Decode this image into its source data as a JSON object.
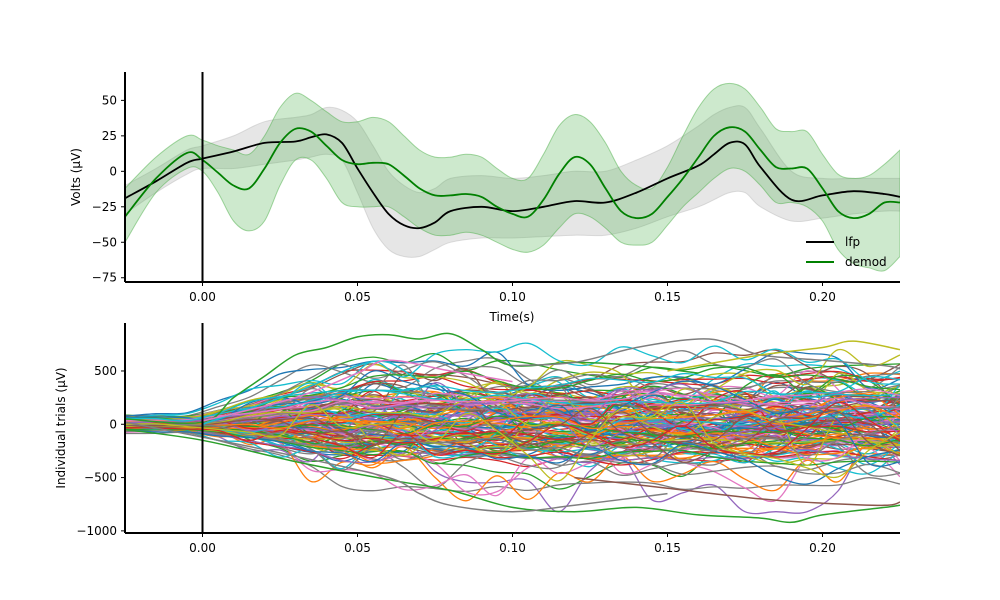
{
  "chart_data": [
    {
      "type": "line",
      "xlabel": "Time(s)",
      "ylabel": "Volts (μV)",
      "xlim": [
        -0.025,
        0.225
      ],
      "ylim": [
        -78,
        70
      ],
      "xticks": [
        0.0,
        0.05,
        0.1,
        0.15,
        0.2
      ],
      "xtick_labels": [
        "0.00",
        "0.05",
        "0.10",
        "0.15",
        "0.20"
      ],
      "yticks": [
        -75,
        -50,
        -25,
        0,
        25,
        50
      ],
      "ytick_labels": [
        "−75",
        "−50",
        "−25",
        "0",
        "25",
        "50"
      ],
      "vline_x": 0.0,
      "legend": {
        "placement": "bottom-right"
      },
      "grid": false,
      "series": [
        {
          "name": "lfp",
          "color": "#000000",
          "x": [
            -0.025,
            -0.015,
            -0.005,
            0.0,
            0.01,
            0.02,
            0.03,
            0.035,
            0.04,
            0.045,
            0.05,
            0.055,
            0.06,
            0.065,
            0.07,
            0.075,
            0.08,
            0.09,
            0.1,
            0.11,
            0.12,
            0.13,
            0.14,
            0.15,
            0.16,
            0.165,
            0.17,
            0.175,
            0.18,
            0.19,
            0.2,
            0.21,
            0.22,
            0.225
          ],
          "values": [
            -19,
            -7,
            6,
            9,
            14,
            20,
            21,
            24,
            26,
            20,
            2,
            -15,
            -30,
            -38,
            -40,
            -36,
            -28,
            -25,
            -28,
            -25,
            -21,
            -22,
            -15,
            -5,
            4,
            12,
            20,
            19,
            3,
            -20,
            -17,
            -14,
            -16,
            -18
          ],
          "band_lower": [
            -30,
            -15,
            -2,
            2,
            2,
            5,
            8,
            10,
            12,
            8,
            -15,
            -40,
            -55,
            -60,
            -60,
            -55,
            -50,
            -47,
            -47,
            -46,
            -45,
            -45,
            -40,
            -32,
            -25,
            -20,
            -15,
            -15,
            -25,
            -35,
            -33,
            -30,
            -28,
            -28
          ],
          "band_upper": [
            -10,
            2,
            15,
            18,
            25,
            35,
            38,
            40,
            45,
            43,
            35,
            18,
            0,
            -10,
            -15,
            -12,
            -5,
            -3,
            -5,
            -3,
            0,
            0,
            8,
            18,
            32,
            40,
            45,
            45,
            30,
            0,
            -5,
            -5,
            -5,
            -5
          ]
        },
        {
          "name": "demod",
          "color": "#008000",
          "x": [
            -0.025,
            -0.015,
            -0.005,
            0.0,
            0.005,
            0.01,
            0.015,
            0.02,
            0.025,
            0.03,
            0.035,
            0.04,
            0.045,
            0.05,
            0.055,
            0.06,
            0.065,
            0.07,
            0.075,
            0.08,
            0.085,
            0.09,
            0.095,
            0.1,
            0.105,
            0.11,
            0.115,
            0.12,
            0.125,
            0.13,
            0.135,
            0.14,
            0.145,
            0.15,
            0.155,
            0.16,
            0.165,
            0.17,
            0.175,
            0.18,
            0.185,
            0.19,
            0.195,
            0.2,
            0.205,
            0.21,
            0.215,
            0.22,
            0.225
          ],
          "values": [
            -32,
            -5,
            13,
            8,
            -1,
            -10,
            -12,
            2,
            20,
            30,
            28,
            18,
            8,
            5,
            6,
            5,
            -3,
            -12,
            -17,
            -17,
            -16,
            -18,
            -25,
            -30,
            -32,
            -20,
            -2,
            10,
            5,
            -12,
            -28,
            -33,
            -30,
            -18,
            -5,
            10,
            25,
            31,
            28,
            15,
            3,
            2,
            2,
            -12,
            -28,
            -33,
            -30,
            -22,
            -22
          ],
          "band_lower": [
            -50,
            -15,
            2,
            0,
            -15,
            -35,
            -42,
            -35,
            -10,
            8,
            8,
            -5,
            -22,
            -25,
            -25,
            -25,
            -32,
            -40,
            -45,
            -45,
            -43,
            -45,
            -50,
            -55,
            -57,
            -52,
            -40,
            -30,
            -32,
            -40,
            -50,
            -52,
            -50,
            -38,
            -25,
            -15,
            -5,
            2,
            0,
            -10,
            -22,
            -22,
            -25,
            -35,
            -55,
            -65,
            -68,
            -70,
            -60
          ],
          "band_upper": [
            -12,
            10,
            25,
            22,
            18,
            15,
            12,
            25,
            45,
            55,
            50,
            42,
            35,
            35,
            38,
            35,
            25,
            15,
            10,
            10,
            12,
            10,
            2,
            -5,
            -5,
            12,
            32,
            40,
            35,
            20,
            0,
            -10,
            -12,
            3,
            25,
            45,
            58,
            62,
            58,
            45,
            30,
            28,
            28,
            12,
            -2,
            -5,
            -3,
            5,
            15
          ]
        }
      ]
    },
    {
      "type": "line",
      "xlabel": "",
      "ylabel": "Individual trials (μV)",
      "xlim": [
        -0.025,
        0.225
      ],
      "ylim": [
        -1020,
        950
      ],
      "xticks": [
        0.0,
        0.05,
        0.1,
        0.15,
        0.2
      ],
      "xtick_labels": [
        "0.00",
        "0.05",
        "0.10",
        "0.15",
        "0.20"
      ],
      "yticks": [
        -1000,
        -500,
        0,
        500
      ],
      "ytick_labels": [
        "−1000",
        "−500",
        "0",
        "500"
      ],
      "vline_x": 0.0,
      "grid": false,
      "trial_count": 150,
      "palette": [
        "#1f77b4",
        "#ff7f0e",
        "#2ca02c",
        "#d62728",
        "#9467bd",
        "#8c564b",
        "#e377c2",
        "#7f7f7f",
        "#bcbd22",
        "#17becf"
      ],
      "highlight_series": [
        {
          "color": "#2ca02c",
          "x": [
            -0.025,
            0.0,
            0.01,
            0.02,
            0.03,
            0.04,
            0.05,
            0.06,
            0.07,
            0.08,
            0.09,
            0.1,
            0.12,
            0.14,
            0.16
          ],
          "values": [
            50,
            20,
            250,
            450,
            650,
            720,
            820,
            840,
            800,
            850,
            700,
            550,
            580,
            550,
            480
          ]
        },
        {
          "color": "#7f7f7f",
          "x": [
            0.1,
            0.12,
            0.14,
            0.16,
            0.17,
            0.18,
            0.2,
            0.22,
            0.225
          ],
          "values": [
            550,
            580,
            720,
            800,
            760,
            650,
            600,
            550,
            520
          ]
        },
        {
          "color": "#2ca02c",
          "x": [
            -0.025,
            0.0,
            0.03,
            0.06,
            0.08,
            0.1,
            0.12,
            0.14,
            0.16,
            0.18,
            0.19,
            0.2,
            0.22,
            0.225
          ],
          "values": [
            -50,
            -150,
            -350,
            -520,
            -620,
            -780,
            -820,
            -780,
            -850,
            -880,
            -920,
            -850,
            -780,
            -760
          ]
        },
        {
          "color": "#7f7f7f",
          "x": [
            -0.025,
            0.0,
            0.03,
            0.06,
            0.07,
            0.08,
            0.1,
            0.12,
            0.15
          ],
          "values": [
            20,
            -120,
            -300,
            -500,
            -650,
            -760,
            -820,
            -760,
            -650
          ]
        },
        {
          "color": "#8c564b",
          "x": [
            0.12,
            0.15,
            0.18,
            0.2,
            0.22,
            0.225
          ],
          "values": [
            -500,
            -600,
            -700,
            -740,
            -760,
            -730
          ]
        },
        {
          "color": "#17becf",
          "x": [
            0.0,
            0.03,
            0.05,
            0.06,
            0.07
          ],
          "values": [
            0,
            300,
            550,
            580,
            400
          ]
        },
        {
          "color": "#e377c2",
          "x": [
            0.0,
            0.03,
            0.05,
            0.06,
            0.08,
            0.1
          ],
          "values": [
            30,
            250,
            480,
            600,
            500,
            400
          ]
        },
        {
          "color": "#bcbd22",
          "x": [
            0.15,
            0.18,
            0.2,
            0.21,
            0.225
          ],
          "values": [
            500,
            650,
            720,
            780,
            700
          ]
        }
      ]
    }
  ]
}
